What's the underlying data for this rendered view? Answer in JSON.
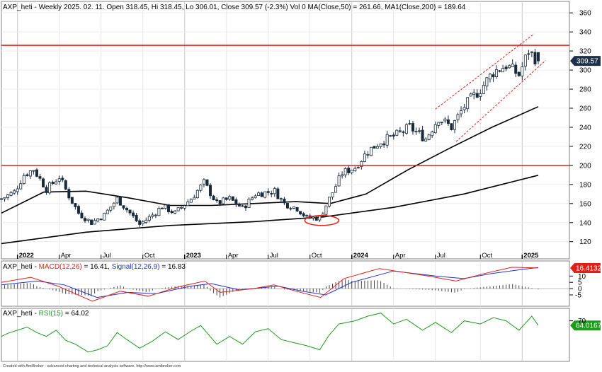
{
  "header": {
    "main": "AXP_heti - Weekly 2025. 02. 11. Open 318.45, Hi 318.45, Lo 306.01, Close 309.57 (-2.3%) Vol 0 MA(Close,50) = 261.66, MA1(Close,200) = 189.64",
    "macd_prefix": "AXP_heti - ",
    "macd_name": "MACD(12,26)",
    "macd_value": " = 16.41, ",
    "signal_name": "Signal(12,26,9)",
    "signal_value": " = 16.83",
    "rsi_prefix": "AXP_heti - ",
    "rsi_name": "RSI(15)",
    "rsi_value": " = 64.02"
  },
  "footer": "Created with AmiBroker - advanced charting and technical analysis software. http://www.amibroker.com",
  "colors": {
    "price_line": "#000000",
    "up": "#ffffff",
    "down": "#1a2a3a",
    "resistance": "#e0201b",
    "channel": "#e0201b",
    "macd": "#e0201b",
    "signal": "#2233cc",
    "histogram": "#444444",
    "rsi": "#1f9a1f",
    "last_price_bg": "#1b2f48",
    "macd_value_bg": "#e0201b",
    "rsi_value_bg": "#1f9a1f"
  },
  "chart_data": [
    {
      "type": "candlestick",
      "title": "AXP_heti - Weekly",
      "x_ticks": [
        "2022",
        "Apr",
        "Jul",
        "Oct",
        "2023",
        "Apr",
        "Jul",
        "Oct",
        "2024",
        "Apr",
        "Jul",
        "Oct",
        "2025"
      ],
      "y_ticks": [
        120,
        140,
        160,
        180,
        200,
        220,
        240,
        260,
        280,
        300,
        320,
        340,
        360
      ],
      "ylim": [
        102,
        372
      ],
      "last_close_label": "309.57",
      "last_bar": {
        "date": "2025. 02. 11.",
        "open": 318.45,
        "high": 318.45,
        "low": 306.01,
        "close": 309.57
      },
      "close_path": [
        [
          "2021-11-29",
          165
        ],
        [
          "2021-12-27",
          172
        ],
        [
          "2022-01-17",
          190
        ],
        [
          "2022-02-07",
          196
        ],
        [
          "2022-03-07",
          175
        ],
        [
          "2022-04-04",
          188
        ],
        [
          "2022-04-25",
          168
        ],
        [
          "2022-05-16",
          150
        ],
        [
          "2022-06-13",
          140
        ],
        [
          "2022-07-11",
          148
        ],
        [
          "2022-08-08",
          165
        ],
        [
          "2022-09-05",
          150
        ],
        [
          "2022-09-26",
          138
        ],
        [
          "2022-10-24",
          148
        ],
        [
          "2022-11-14",
          157
        ],
        [
          "2022-12-12",
          150
        ],
        [
          "2023-01-16",
          165
        ],
        [
          "2023-02-13",
          182
        ],
        [
          "2023-03-13",
          160
        ],
        [
          "2023-04-10",
          165
        ],
        [
          "2023-05-08",
          155
        ],
        [
          "2023-06-05",
          170
        ],
        [
          "2023-07-17",
          173
        ],
        [
          "2023-08-07",
          160
        ],
        [
          "2023-09-04",
          155
        ],
        [
          "2023-09-25",
          145
        ],
        [
          "2023-10-23",
          145
        ],
        [
          "2023-11-13",
          165
        ],
        [
          "2023-12-11",
          192
        ],
        [
          "2024-01-08",
          198
        ],
        [
          "2024-02-05",
          215
        ],
        [
          "2024-03-04",
          225
        ],
        [
          "2024-04-08",
          232
        ],
        [
          "2024-05-06",
          240
        ],
        [
          "2024-06-10",
          228
        ],
        [
          "2024-07-08",
          250
        ],
        [
          "2024-08-05",
          240
        ],
        [
          "2024-09-02",
          262
        ],
        [
          "2024-10-07",
          280
        ],
        [
          "2024-11-04",
          298
        ],
        [
          "2024-12-02",
          305
        ],
        [
          "2024-12-30",
          295
        ],
        [
          "2025-01-20",
          320
        ],
        [
          "2025-02-10",
          309.57
        ]
      ],
      "series": [
        {
          "name": "MA(Close,50)",
          "last": 261.66
        },
        {
          "name": "MA1(Close,200)",
          "last": 189.64
        }
      ],
      "ma50_path": [
        [
          "2021-11-29",
          150
        ],
        [
          "2022-03-01",
          172
        ],
        [
          "2022-06-01",
          173
        ],
        [
          "2022-09-01",
          166
        ],
        [
          "2022-12-01",
          158
        ],
        [
          "2023-03-01",
          158
        ],
        [
          "2023-06-01",
          160
        ],
        [
          "2023-09-01",
          162
        ],
        [
          "2023-11-15",
          160
        ],
        [
          "2024-02-01",
          170
        ],
        [
          "2024-05-01",
          195
        ],
        [
          "2024-08-01",
          218
        ],
        [
          "2024-11-01",
          240
        ],
        [
          "2025-02-10",
          261.66
        ]
      ],
      "ma200_path": [
        [
          "2021-11-29",
          118
        ],
        [
          "2022-06-01",
          130
        ],
        [
          "2022-12-01",
          137
        ],
        [
          "2023-06-01",
          141
        ],
        [
          "2023-11-01",
          146
        ],
        [
          "2024-04-01",
          156
        ],
        [
          "2024-09-01",
          170
        ],
        [
          "2025-02-10",
          189.64
        ]
      ],
      "horizontal_lines": [
        326,
        200
      ],
      "channel": {
        "upper": [
          [
            "2024-07-01",
            259
          ],
          [
            "2025-02-01",
            338
          ]
        ],
        "lower": [
          [
            "2024-08-15",
            225
          ],
          [
            "2025-03-01",
            310
          ]
        ]
      },
      "highlight_ellipse": {
        "date": "2023-10-23",
        "value": 143
      }
    },
    {
      "type": "line",
      "title": "MACD(12,26)",
      "y_ticks": [
        10,
        5,
        0,
        -5
      ],
      "last_value_label": "16.4132",
      "series": [
        {
          "name": "MACD(12,26)",
          "last": 16.41
        },
        {
          "name": "Signal(12,26,9)",
          "last": 16.83
        }
      ],
      "macd_path": [
        [
          "2021-11-29",
          5
        ],
        [
          "2022-02-01",
          9
        ],
        [
          "2022-04-01",
          2
        ],
        [
          "2022-06-15",
          -10
        ],
        [
          "2022-08-15",
          -2
        ],
        [
          "2022-10-15",
          -6
        ],
        [
          "2022-12-15",
          1
        ],
        [
          "2023-02-15",
          6
        ],
        [
          "2023-03-20",
          -3
        ],
        [
          "2023-06-01",
          0
        ],
        [
          "2023-07-15",
          3
        ],
        [
          "2023-09-01",
          -2
        ],
        [
          "2023-10-25",
          -7
        ],
        [
          "2023-12-15",
          8
        ],
        [
          "2024-03-01",
          16
        ],
        [
          "2024-06-15",
          10
        ],
        [
          "2024-08-15",
          6
        ],
        [
          "2024-10-15",
          12
        ],
        [
          "2024-12-15",
          17
        ],
        [
          "2025-02-10",
          16.41
        ]
      ],
      "signal_path": [
        [
          "2021-11-29",
          3
        ],
        [
          "2022-02-15",
          6
        ],
        [
          "2022-04-15",
          3
        ],
        [
          "2022-06-25",
          -7
        ],
        [
          "2022-09-01",
          -3
        ],
        [
          "2022-11-01",
          -4
        ],
        [
          "2023-01-15",
          2
        ],
        [
          "2023-03-01",
          4
        ],
        [
          "2023-05-01",
          -1
        ],
        [
          "2023-07-25",
          2
        ],
        [
          "2023-09-15",
          -2
        ],
        [
          "2023-11-05",
          -5
        ],
        [
          "2024-01-01",
          5
        ],
        [
          "2024-04-01",
          14
        ],
        [
          "2024-07-01",
          10
        ],
        [
          "2024-09-01",
          8
        ],
        [
          "2024-11-01",
          12
        ],
        [
          "2025-01-01",
          15
        ],
        [
          "2025-02-10",
          16.83
        ]
      ]
    },
    {
      "type": "line",
      "title": "RSI(15)",
      "y_ticks": [
        70
      ],
      "last_value_label": "64.0167",
      "series": [
        {
          "name": "RSI(15)",
          "last": 64.02
        }
      ],
      "rsi_path": [
        [
          "2021-11-29",
          50
        ],
        [
          "2021-12-13",
          54
        ],
        [
          "2022-01-03",
          58
        ],
        [
          "2022-01-24",
          62
        ],
        [
          "2022-02-14",
          55
        ],
        [
          "2022-03-07",
          50
        ],
        [
          "2022-03-28",
          58
        ],
        [
          "2022-04-18",
          45
        ],
        [
          "2022-05-09",
          40
        ],
        [
          "2022-06-06",
          30
        ],
        [
          "2022-06-27",
          33
        ],
        [
          "2022-07-18",
          38
        ],
        [
          "2022-08-08",
          55
        ],
        [
          "2022-08-29",
          46
        ],
        [
          "2022-09-26",
          35
        ],
        [
          "2022-10-24",
          44
        ],
        [
          "2022-11-21",
          56
        ],
        [
          "2022-12-19",
          46
        ],
        [
          "2023-01-16",
          57
        ],
        [
          "2023-02-06",
          64
        ],
        [
          "2023-03-13",
          40
        ],
        [
          "2023-04-10",
          50
        ],
        [
          "2023-05-08",
          40
        ],
        [
          "2023-06-05",
          56
        ],
        [
          "2023-07-03",
          60
        ],
        [
          "2023-07-31",
          46
        ],
        [
          "2023-08-28",
          42
        ],
        [
          "2023-09-25",
          38
        ],
        [
          "2023-10-23",
          33
        ],
        [
          "2023-11-13",
          52
        ],
        [
          "2023-12-04",
          66
        ],
        [
          "2024-01-08",
          70
        ],
        [
          "2024-02-05",
          76
        ],
        [
          "2024-03-04",
          80
        ],
        [
          "2024-04-01",
          66
        ],
        [
          "2024-04-29",
          72
        ],
        [
          "2024-06-03",
          58
        ],
        [
          "2024-07-01",
          68
        ],
        [
          "2024-08-05",
          55
        ],
        [
          "2024-09-02",
          70
        ],
        [
          "2024-10-07",
          66
        ],
        [
          "2024-11-04",
          74
        ],
        [
          "2024-12-02",
          70
        ],
        [
          "2024-12-30",
          58
        ],
        [
          "2025-01-27",
          76
        ],
        [
          "2025-02-10",
          64.02
        ]
      ]
    }
  ]
}
